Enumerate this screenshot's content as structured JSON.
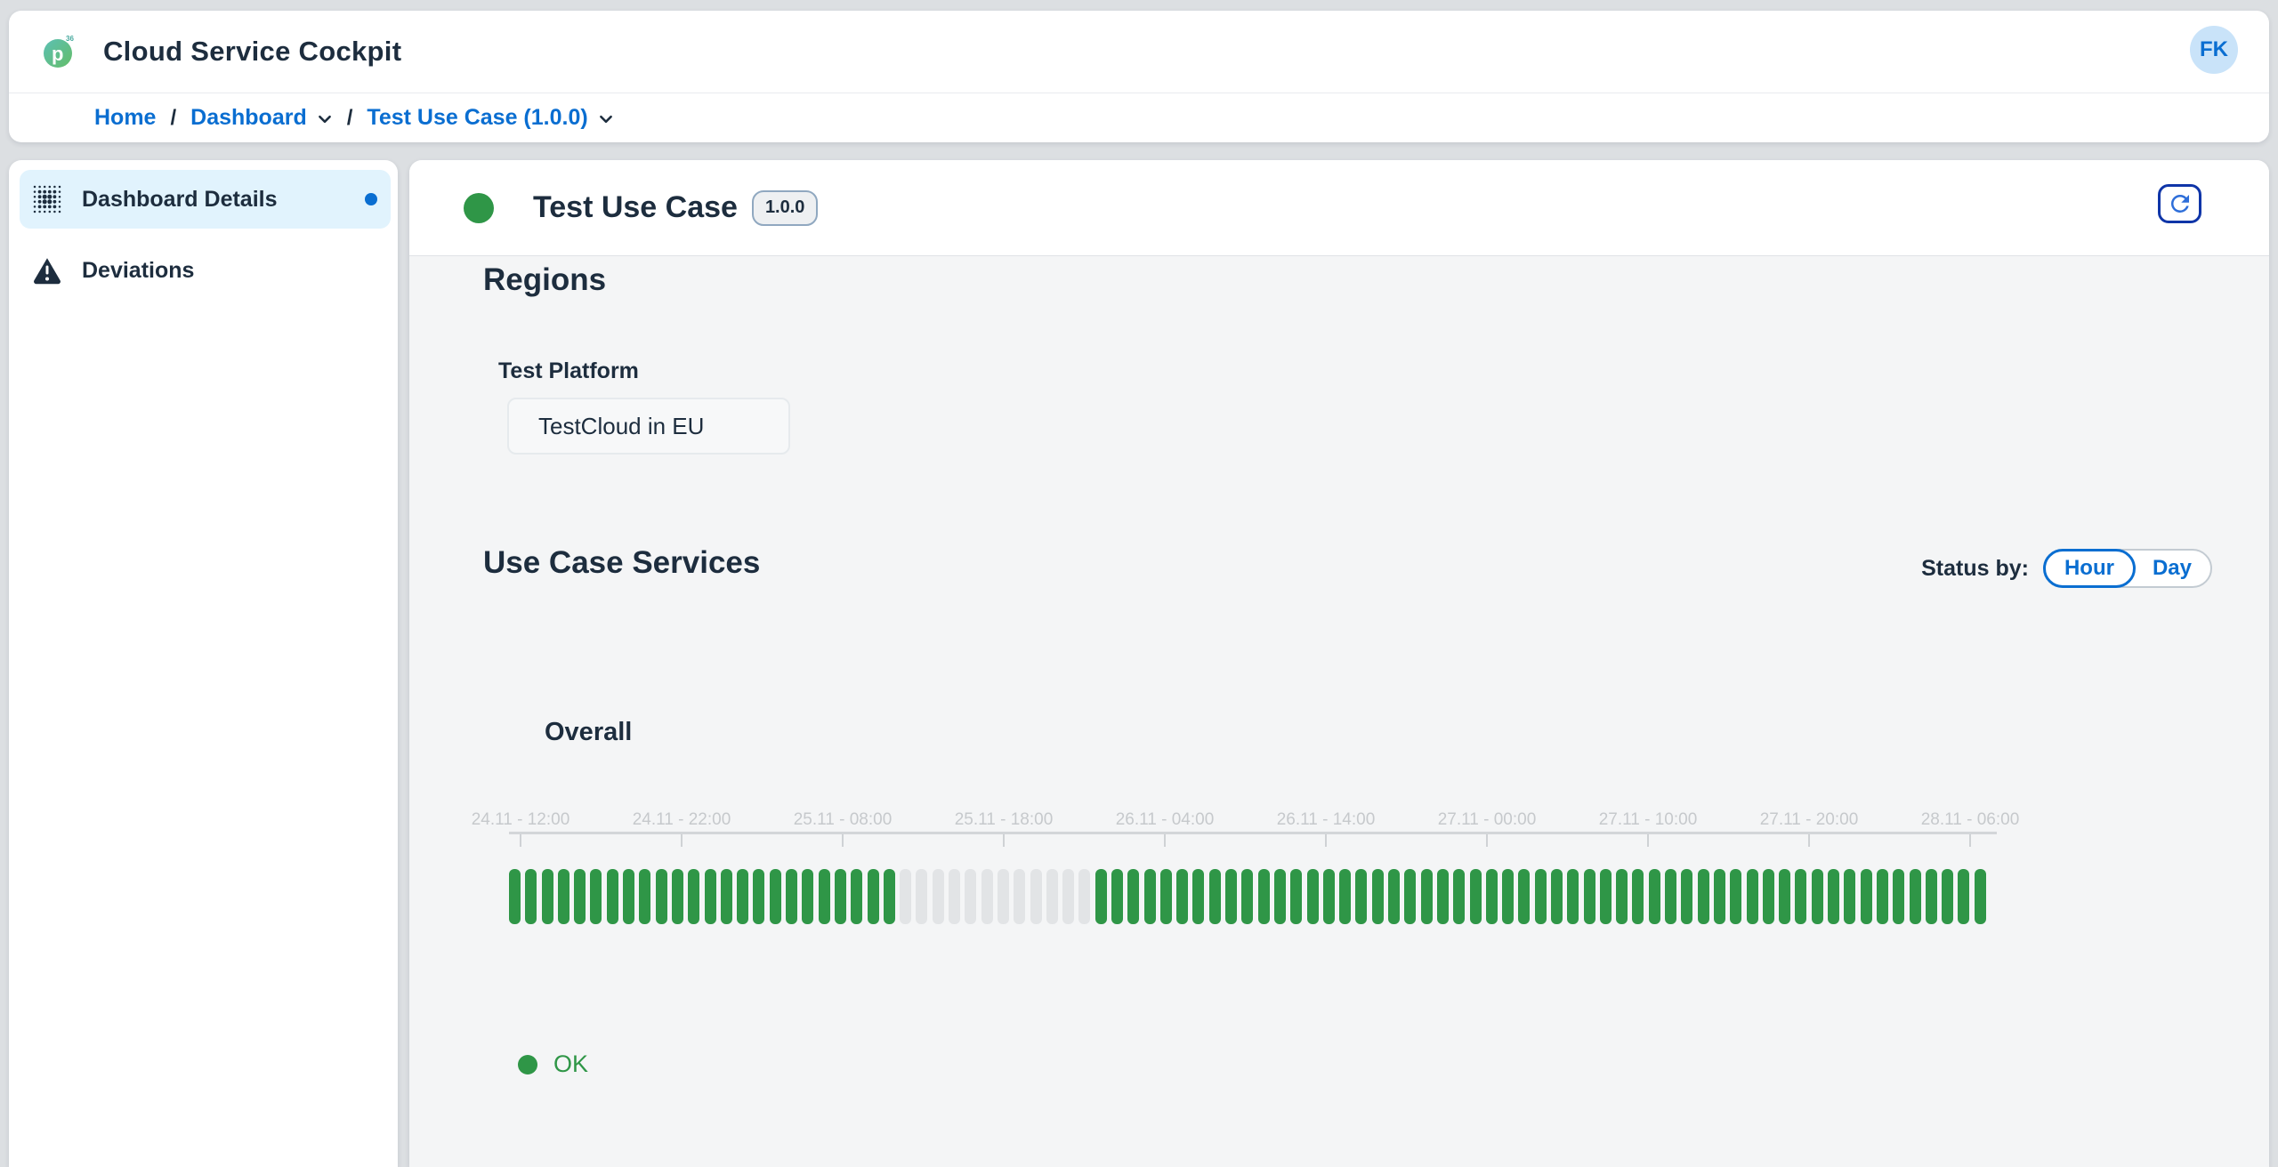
{
  "header": {
    "app_title": "Cloud Service Cockpit",
    "logo_letter": "p",
    "logo_badge": "36",
    "avatar_initials": "FK"
  },
  "breadcrumb": {
    "separator": "/",
    "items": [
      {
        "label": "Home"
      },
      {
        "label": "Dashboard"
      },
      {
        "label": "Test Use Case (1.0.0)"
      }
    ]
  },
  "sidebar": {
    "items": [
      {
        "label": "Dashboard Details",
        "icon": "grid-dots-icon",
        "selected": true,
        "has_notification_dot": true
      },
      {
        "label": "Deviations",
        "icon": "warning-icon",
        "selected": false
      }
    ]
  },
  "main": {
    "title": "Test Use Case",
    "version_badge": "1.0.0",
    "status": "ok",
    "regions": {
      "heading": "Regions",
      "platform_label": "Test Platform",
      "region_value": "TestCloud in EU"
    },
    "services": {
      "heading": "Use Case Services",
      "status_by_label": "Status by:",
      "toggle_options": [
        {
          "label": "Hour",
          "selected": true
        },
        {
          "label": "Day",
          "selected": false
        }
      ]
    }
  },
  "chart_data": {
    "type": "status-timeline",
    "title": "Overall",
    "interval": "hour",
    "x_tick_labels": [
      "24.11 - 12:00",
      "24.11 - 22:00",
      "25.11 - 08:00",
      "25.11 - 18:00",
      "26.11 - 04:00",
      "26.11 - 14:00",
      "27.11 - 00:00",
      "27.11 - 10:00",
      "27.11 - 20:00",
      "28.11 - 06:00"
    ],
    "segments": [
      {
        "status": "ok",
        "count": 24
      },
      {
        "status": "no_data",
        "count": 12
      },
      {
        "status": "ok",
        "count": 55
      }
    ],
    "status_colors": {
      "ok": "#2f9647",
      "no_data": "#e2e4e6"
    },
    "legend": [
      {
        "status": "ok",
        "label": "OK"
      }
    ]
  }
}
